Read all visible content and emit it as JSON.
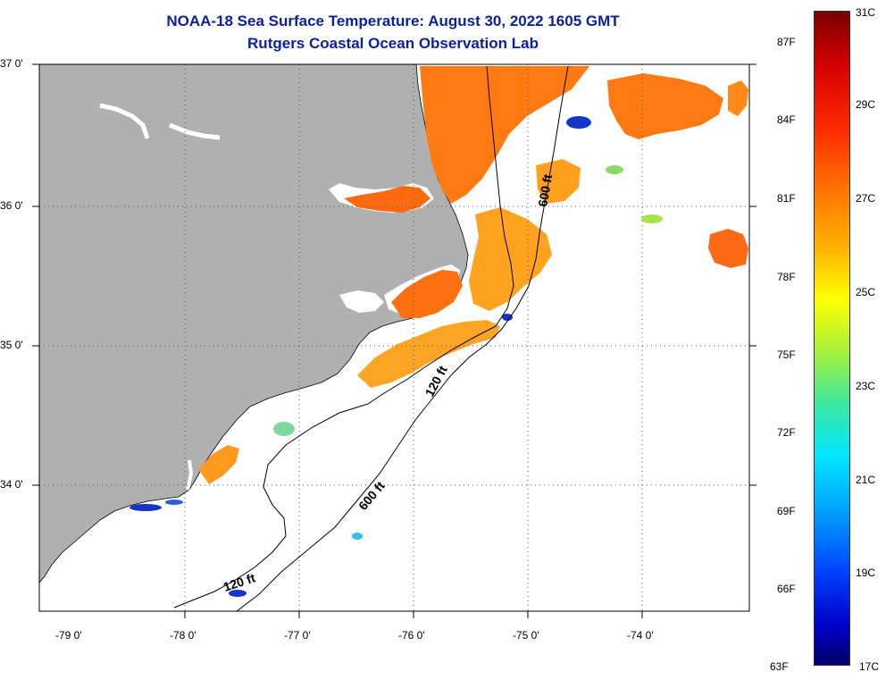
{
  "title_line1": "NOAA-18 Sea Surface Temperature:  August 30, 2022 1605 GMT",
  "title_line2": "Rutgers Coastal Ocean Observation Lab",
  "lat_labels": [
    "37 0'",
    "36 0'",
    "35 0'",
    "34 0'"
  ],
  "lon_labels": [
    "-79 0'",
    "-78 0'",
    "-77 0'",
    "-76 0'",
    "-75 0'",
    "-74 0'"
  ],
  "contour_labels": [
    "600 ft",
    "120 ft",
    "600 ft",
    "120 ft"
  ],
  "colorbar": {
    "fahrenheit_labels": [
      "87F",
      "84F",
      "81F",
      "78F",
      "75F",
      "72F",
      "69F",
      "66F",
      "63F"
    ],
    "celsius_labels": [
      "31C",
      "29C",
      "27C",
      "25C",
      "23C",
      "21C",
      "19C",
      "17C"
    ]
  },
  "colors": {
    "land": "#b0b0b0",
    "title": "#0b1fa3",
    "warm": "#ff7a12",
    "cold": "#1437c8"
  }
}
